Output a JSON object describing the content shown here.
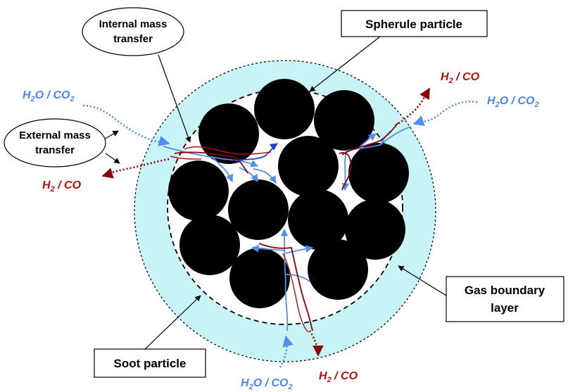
{
  "labels": {
    "spherule": "Spherule particle",
    "gas_boundary_line1": "Gas boundary",
    "gas_boundary_line2": "layer",
    "soot": "Soot particle",
    "internal_line1": "Internal mass",
    "internal_line2": "transfer",
    "external_line1": "External mass",
    "external_line2": "transfer"
  },
  "species": {
    "reactant": {
      "a": "H",
      "a_sub": "2",
      "a_rest": "O / CO",
      "b_sub": "2"
    },
    "product": {
      "a": "H",
      "a_sub": "2",
      "a_rest": " / CO"
    }
  },
  "colors": {
    "reactant": "#4f81f0",
    "product": "#b01010",
    "boundary_fill": "#c8f4f8",
    "spherule": "#000000",
    "pore_blue": "#4f8ff0",
    "pore_darkblue": "#1f3fd0",
    "pore_red": "#8b0000"
  }
}
